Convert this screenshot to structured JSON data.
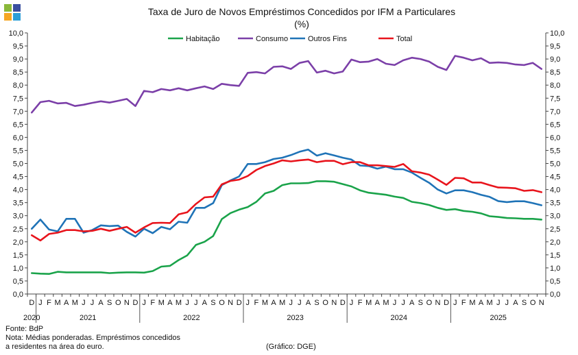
{
  "logo": {
    "colors": [
      "#8ab83a",
      "#3a4fa0",
      "#f5a623",
      "#2b9ed8"
    ]
  },
  "chart_data": {
    "type": "line",
    "title": "Taxa de Juro de Novos Empréstimos  Concedidos por IFM a Particulares",
    "subtitle": "(%)",
    "ylim": [
      0,
      10
    ],
    "y_ticks": [
      "0,0",
      "0,5",
      "1,0",
      "1,5",
      "2,0",
      "2,5",
      "3,0",
      "3,5",
      "4,0",
      "4,5",
      "5,0",
      "5,5",
      "6,0",
      "6,5",
      "7,0",
      "7,5",
      "8,0",
      "8,5",
      "9,0",
      "9,5",
      "10,0"
    ],
    "months": [
      "D",
      "J",
      "F",
      "M",
      "A",
      "M",
      "J",
      "J",
      "A",
      "S",
      "O",
      "N",
      "D",
      "J",
      "F",
      "M",
      "A",
      "M",
      "J",
      "J",
      "A",
      "S",
      "O",
      "N",
      "D",
      "J",
      "F",
      "M",
      "A",
      "M",
      "J",
      "J",
      "A",
      "S",
      "O",
      "N",
      "D",
      "J",
      "F",
      "M",
      "A",
      "M",
      "J",
      "J",
      "A",
      "S",
      "O",
      "N",
      "D",
      "J",
      "F",
      "M",
      "A",
      "M",
      "J",
      "J",
      "A",
      "S",
      "O",
      "N"
    ],
    "years": [
      {
        "label": "2020",
        "from": 0,
        "to": 0
      },
      {
        "label": "2021",
        "from": 1,
        "to": 12
      },
      {
        "label": "2022",
        "from": 13,
        "to": 24
      },
      {
        "label": "2023",
        "from": 25,
        "to": 36
      },
      {
        "label": "2024",
        "from": 37,
        "to": 48
      },
      {
        "label": "2025",
        "from": 49,
        "to": 59
      }
    ],
    "grid": false,
    "legend_position": "top",
    "series": [
      {
        "name": "Habitação",
        "color": "#1aa34a",
        "values": [
          0.8,
          0.78,
          0.77,
          0.85,
          0.83,
          0.83,
          0.83,
          0.83,
          0.83,
          0.8,
          0.82,
          0.83,
          0.83,
          0.82,
          0.88,
          1.05,
          1.08,
          1.3,
          1.48,
          1.88,
          2.0,
          2.22,
          2.87,
          3.1,
          3.23,
          3.33,
          3.53,
          3.85,
          3.95,
          4.17,
          4.24,
          4.24,
          4.25,
          4.32,
          4.32,
          4.3,
          4.21,
          4.12,
          3.97,
          3.88,
          3.84,
          3.8,
          3.73,
          3.68,
          3.53,
          3.48,
          3.41,
          3.3,
          3.22,
          3.25,
          3.18,
          3.15,
          3.09,
          2.98,
          2.95,
          2.91,
          2.9,
          2.88,
          2.88,
          2.85
        ]
      },
      {
        "name": "Consumo",
        "color": "#7b3fa8",
        "values": [
          6.95,
          7.35,
          7.4,
          7.3,
          7.32,
          7.2,
          7.25,
          7.32,
          7.38,
          7.33,
          7.4,
          7.47,
          7.2,
          7.78,
          7.73,
          7.85,
          7.8,
          7.88,
          7.8,
          7.88,
          7.95,
          7.85,
          8.05,
          8.0,
          7.97,
          8.47,
          8.5,
          8.45,
          8.7,
          8.72,
          8.62,
          8.85,
          8.92,
          8.48,
          8.55,
          8.45,
          8.52,
          8.98,
          8.88,
          8.9,
          9.0,
          8.82,
          8.77,
          8.95,
          9.05,
          9.0,
          8.9,
          8.7,
          8.58,
          9.12,
          9.05,
          8.95,
          9.03,
          8.85,
          8.87,
          8.85,
          8.79,
          8.77,
          8.85,
          8.62
        ]
      },
      {
        "name": "Outros Fins",
        "color": "#1f73b7",
        "values": [
          2.5,
          2.85,
          2.47,
          2.4,
          2.88,
          2.88,
          2.35,
          2.45,
          2.63,
          2.6,
          2.62,
          2.38,
          2.2,
          2.5,
          2.33,
          2.57,
          2.48,
          2.77,
          2.73,
          3.3,
          3.3,
          3.48,
          4.17,
          4.35,
          4.5,
          4.98,
          4.98,
          5.05,
          5.17,
          5.22,
          5.32,
          5.45,
          5.53,
          5.3,
          5.39,
          5.31,
          5.22,
          5.15,
          4.92,
          4.9,
          4.8,
          4.88,
          4.78,
          4.78,
          4.65,
          4.45,
          4.26,
          4.0,
          3.85,
          3.97,
          3.97,
          3.9,
          3.8,
          3.72,
          3.56,
          3.52,
          3.55,
          3.55,
          3.48,
          3.4
        ]
      },
      {
        "name": "Total",
        "color": "#e8141c",
        "values": [
          2.25,
          2.05,
          2.3,
          2.35,
          2.45,
          2.45,
          2.4,
          2.42,
          2.5,
          2.42,
          2.5,
          2.57,
          2.35,
          2.55,
          2.72,
          2.73,
          2.72,
          3.05,
          3.13,
          3.45,
          3.7,
          3.73,
          4.2,
          4.33,
          4.38,
          4.52,
          4.75,
          4.9,
          5.0,
          5.12,
          5.08,
          5.12,
          5.15,
          5.05,
          5.1,
          5.1,
          4.97,
          5.05,
          5.05,
          4.93,
          4.93,
          4.9,
          4.87,
          4.98,
          4.7,
          4.65,
          4.57,
          4.38,
          4.18,
          4.45,
          4.43,
          4.27,
          4.27,
          4.17,
          4.08,
          4.07,
          4.05,
          3.95,
          3.98,
          3.9
        ]
      }
    ]
  },
  "footer": {
    "source": "Fonte: BdP",
    "note_line1": "Nota: Médias ponderadas. Empréstimos concedidos",
    "note_line2": "a residentes na área do euro.",
    "credit": "(Gráfico: DGE)"
  }
}
